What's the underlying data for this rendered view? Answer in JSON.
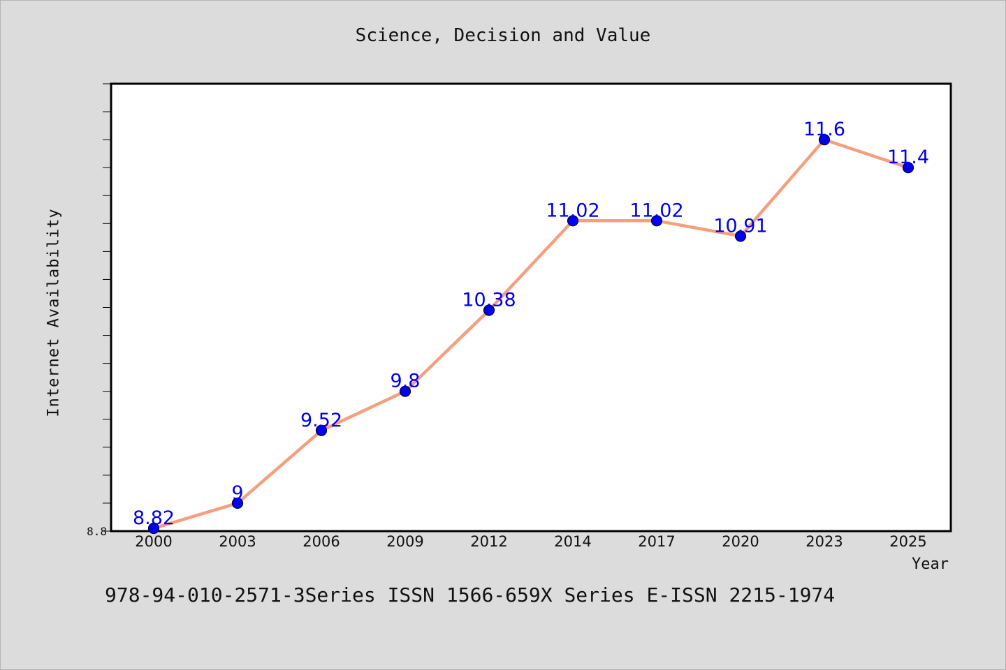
{
  "chart_data": {
    "type": "line",
    "title": "Science, Decision and Value",
    "xlabel": "Year",
    "ylabel": "Internet Availability",
    "categories": [
      "2000",
      "2003",
      "2006",
      "2009",
      "2012",
      "2014",
      "2017",
      "2020",
      "2023",
      "2025"
    ],
    "series": [
      {
        "values": [
          8.82,
          9,
          9.52,
          9.8,
          10.38,
          11.02,
          11.02,
          10.91,
          11.6,
          11.4
        ],
        "data_labels": [
          "8.82",
          "9",
          "9.52",
          "9.8",
          "10.38",
          "11.02",
          "11.02",
          "10.91",
          "11.6",
          "11.4"
        ]
      }
    ],
    "ylim": [
      8.8,
      12.0
    ],
    "y_tick_labels": [
      "8.8"
    ],
    "grid": false,
    "legend": "none",
    "colors": {
      "line": "#f4a07e",
      "marker": "#0000ee",
      "label": "#0000ee",
      "background": "#dcdcdc",
      "plot_background": "#ffffff"
    }
  },
  "footer": {
    "text": "978-94-010-2571-3Series ISSN 1566-659X Series E-ISSN 2215-1974"
  }
}
